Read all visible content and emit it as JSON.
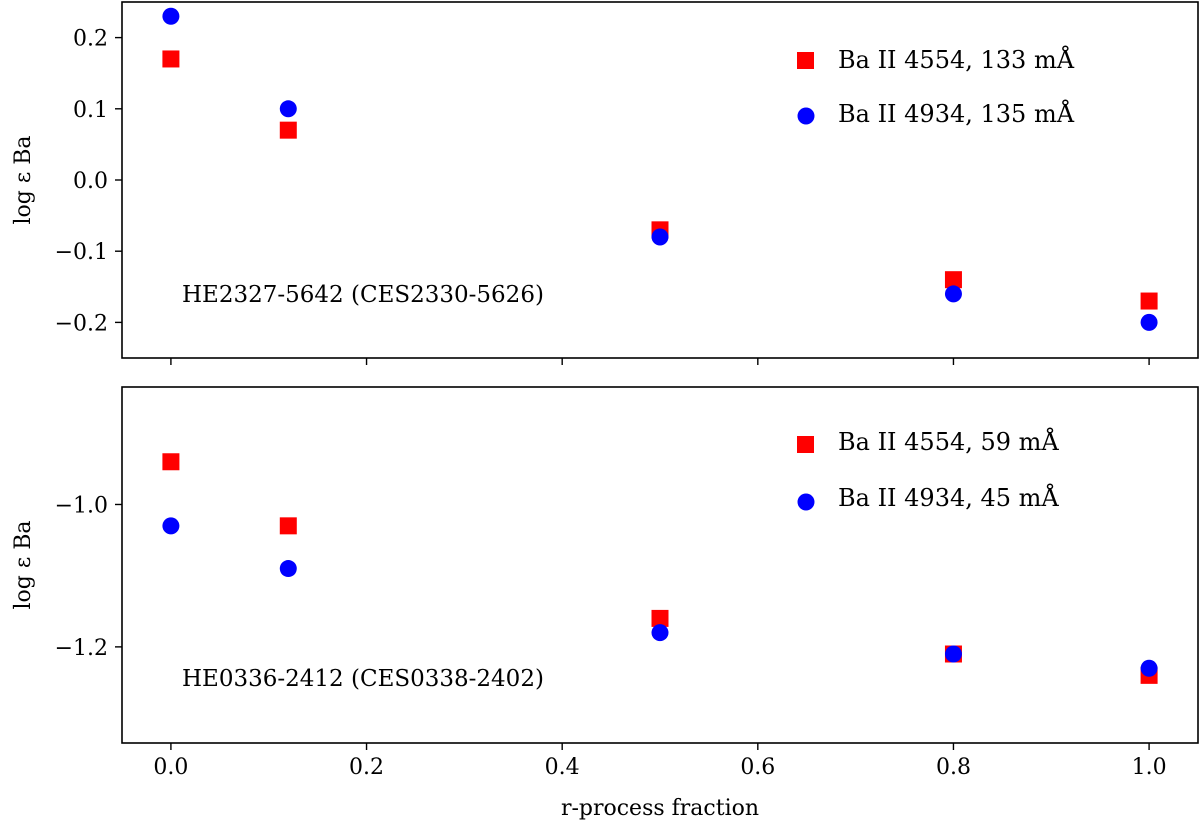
{
  "chart_data": [
    {
      "type": "scatter",
      "title": "",
      "xlabel": "",
      "ylabel": "log ε Ba",
      "xlim": [
        -0.05,
        1.05
      ],
      "ylim": [
        -0.25,
        0.25
      ],
      "xticks": [
        0.0,
        0.2,
        0.4,
        0.6,
        0.8,
        1.0
      ],
      "yticks": [
        0.2,
        0.1,
        0.0,
        -0.1,
        -0.2
      ],
      "ytick_labels": [
        "0.2",
        "0.1",
        "0.0",
        "−0.1",
        "−0.2"
      ],
      "annotation": "HE2327-5642 (CES2330-5626)",
      "legend_position": "top-right",
      "series": [
        {
          "name": "Ba II 4554, 133 mÅ",
          "marker": "square",
          "color": "#ff0000",
          "x": [
            0.0,
            0.12,
            0.5,
            0.8,
            1.0
          ],
          "y": [
            0.17,
            0.07,
            -0.07,
            -0.14,
            -0.17
          ]
        },
        {
          "name": "Ba II 4934, 135 mÅ",
          "marker": "circle",
          "color": "#0000ff",
          "x": [
            0.0,
            0.12,
            0.5,
            0.8,
            1.0
          ],
          "y": [
            0.23,
            0.1,
            -0.08,
            -0.16,
            -0.2
          ]
        }
      ]
    },
    {
      "type": "scatter",
      "title": "",
      "xlabel": "r-process fraction",
      "ylabel": "log ε Ba",
      "xlim": [
        -0.05,
        1.05
      ],
      "ylim": [
        -1.335,
        -0.835
      ],
      "xticks": [
        0.0,
        0.2,
        0.4,
        0.6,
        0.8,
        1.0
      ],
      "xtick_labels": [
        "0.0",
        "0.2",
        "0.4",
        "0.6",
        "0.8",
        "1.0"
      ],
      "yticks": [
        -1.0,
        -1.2
      ],
      "ytick_labels": [
        "−1.0",
        "−1.2"
      ],
      "annotation": "HE0336-2412 (CES0338-2402)",
      "legend_position": "top-right",
      "series": [
        {
          "name": "Ba II 4554, 59 mÅ",
          "marker": "square",
          "color": "#ff0000",
          "x": [
            0.0,
            0.12,
            0.5,
            0.8,
            1.0
          ],
          "y": [
            -0.94,
            -1.03,
            -1.16,
            -1.21,
            -1.24
          ]
        },
        {
          "name": "Ba II 4934, 45 mÅ",
          "marker": "circle",
          "color": "#0000ff",
          "x": [
            0.0,
            0.12,
            0.5,
            0.8,
            1.0
          ],
          "y": [
            -1.03,
            -1.09,
            -1.18,
            -1.21,
            -1.23
          ]
        }
      ]
    }
  ]
}
